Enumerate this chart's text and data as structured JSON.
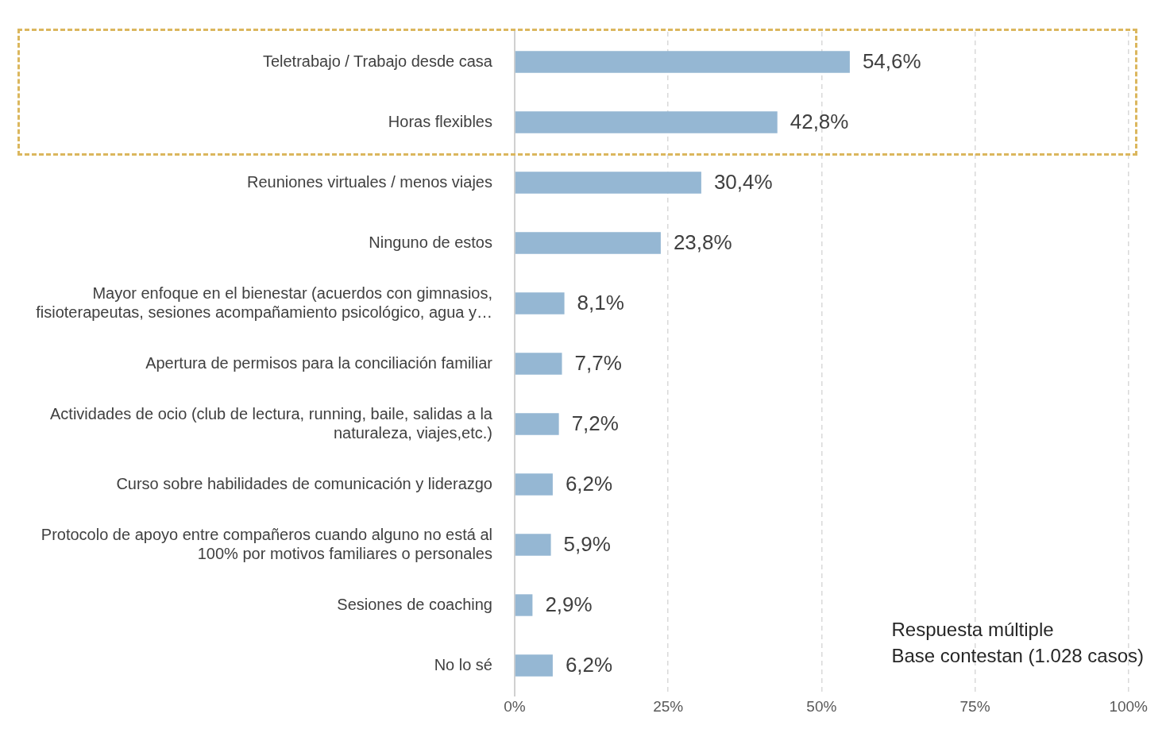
{
  "chart_data": {
    "type": "bar",
    "orientation": "horizontal",
    "categories": [
      "Teletrabajo / Trabajo desde casa",
      "Horas flexibles",
      "Reuniones virtuales / menos viajes",
      "Ninguno de estos",
      "Mayor enfoque en el bienestar (acuerdos con gimnasios, fisioterapeutas, sesiones acompañamiento psicológico, agua y…",
      "Apertura de permisos para la conciliación familiar",
      "Actividades de ocio (club de lectura, running, baile, salidas a la naturaleza, viajes,etc.)",
      "Curso sobre habilidades de comunicación y liderazgo",
      "Protocolo de apoyo entre compañeros cuando alguno no está al 100% por motivos familiares o personales",
      "Sesiones de coaching",
      "No lo sé"
    ],
    "values": [
      54.6,
      42.8,
      30.4,
      23.8,
      8.1,
      7.7,
      7.2,
      6.2,
      5.9,
      2.9,
      6.2
    ],
    "value_labels": [
      "54,6%",
      "42,8%",
      "30,4%",
      "23,8%",
      "8,1%",
      "7,7%",
      "7,2%",
      "6,2%",
      "5,9%",
      "2,9%",
      "6,2%"
    ],
    "color": "#95b7d3",
    "xlim": [
      0,
      100
    ],
    "xticks": [
      {
        "value": 0,
        "label": "0%"
      },
      {
        "value": 25,
        "label": "25%"
      },
      {
        "value": 50,
        "label": "50%"
      },
      {
        "value": 75,
        "label": "75%"
      },
      {
        "value": 100,
        "label": "100%"
      }
    ],
    "grid": "x",
    "legend": false,
    "annotations": [
      "Respuesta múltiple",
      "Base contestan (1.028 casos)"
    ]
  }
}
